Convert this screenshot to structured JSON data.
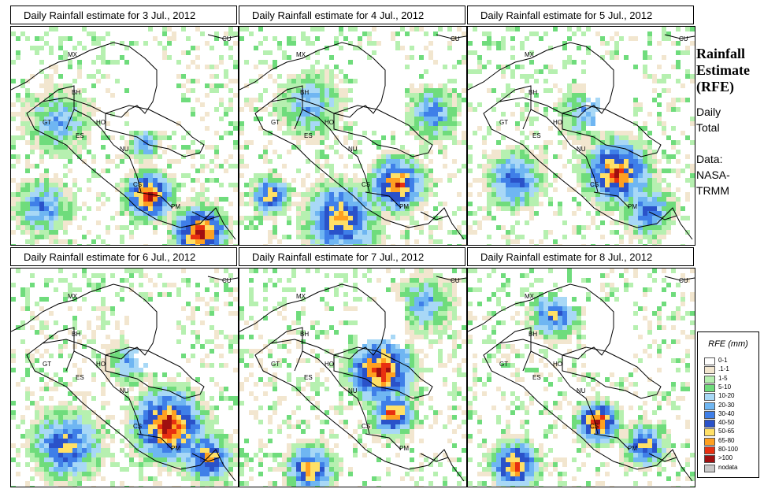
{
  "panels": [
    {
      "title": "Daily Rainfall estimate for  3 Jul., 2012",
      "seed": 3
    },
    {
      "title": "Daily Rainfall estimate for  4 Jul., 2012",
      "seed": 4
    },
    {
      "title": "Daily Rainfall estimate for  5 Jul., 2012",
      "seed": 5
    },
    {
      "title": "Daily Rainfall estimate for  6 Jul., 2012",
      "seed": 6
    },
    {
      "title": "Daily Rainfall estimate for  7 Jul., 2012",
      "seed": 7
    },
    {
      "title": "Daily Rainfall estimate for  8 Jul., 2012",
      "seed": 8
    }
  ],
  "country_labels": [
    "MX",
    "CU",
    "BH",
    "GT",
    "HO",
    "ES",
    "NU",
    "CS",
    "PM"
  ],
  "side": {
    "title_lines": [
      "Rainfall",
      "Estimate",
      "(RFE)"
    ],
    "subtitle_lines": [
      "Daily",
      "Total"
    ],
    "data_lines": [
      "Data:",
      "NASA-",
      "TRMM"
    ]
  },
  "legend": {
    "title": "RFE (mm)",
    "items": [
      {
        "label": "0-1",
        "color": "#ffffff"
      },
      {
        "label": ".1-1",
        "color": "#f2e6cf"
      },
      {
        "label": "1-5",
        "color": "#b6f0b0"
      },
      {
        "label": "5-10",
        "color": "#6fdc7c"
      },
      {
        "label": "10-20",
        "color": "#a8d8f6"
      },
      {
        "label": "20-30",
        "color": "#6fb6f2"
      },
      {
        "label": "30-40",
        "color": "#3f7fe8"
      },
      {
        "label": "40-50",
        "color": "#2a52c9"
      },
      {
        "label": "50-65",
        "color": "#ffe066"
      },
      {
        "label": "65-80",
        "color": "#ffa020"
      },
      {
        "label": "80-100",
        "color": "#e83010"
      },
      {
        "label": ">100",
        "color": "#a01010"
      },
      {
        "label": "nodata",
        "color": "#c8c8c8"
      }
    ]
  }
}
